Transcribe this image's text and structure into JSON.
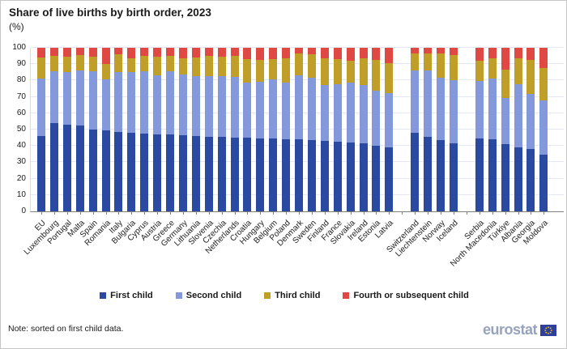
{
  "header": {
    "title": "Share of live births by birth order, 2023",
    "subtitle": "(%)"
  },
  "note": "Note: sorted on first child data.",
  "logo": {
    "text": "eurostat"
  },
  "colors": {
    "first_child": "#2a4aa2",
    "second_child": "#8399db",
    "third_child": "#bf9f28",
    "fourth_child": "#df4843",
    "gridline": "#e4e8f4",
    "axis": "#7f7f7f",
    "logo_text": "#97a3bd",
    "flag_blue": "#2e3f9e",
    "flag_stars": "#ffcc00"
  },
  "chart_data": {
    "type": "bar",
    "stacked": true,
    "title": "Share of live births by birth order, 2023",
    "ylabel": "(%)",
    "xlabel": "",
    "ylim": [
      0,
      100
    ],
    "yticks": [
      0,
      10,
      20,
      30,
      40,
      50,
      60,
      70,
      80,
      90,
      100
    ],
    "grid": true,
    "legend_position": "bottom",
    "group_gaps_after": [
      27,
      31
    ],
    "categories": [
      "EU",
      "Luxembourg",
      "Portugal",
      "Malta",
      "Spain",
      "Romania",
      "Italy",
      "Bulgaria",
      "Cyprus",
      "Austria",
      "Greece",
      "Germany",
      "Lithuania",
      "Slovenia",
      "Czechia",
      "Netherlands",
      "Croatia",
      "Hungary",
      "Belgium",
      "Poland",
      "Denmark",
      "Sweden",
      "Finland",
      "France",
      "Slovakia",
      "Ireland",
      "Estonia",
      "Latvia",
      "Switzerland",
      "Liechtenstein",
      "Norway",
      "Iceland",
      "Serbia",
      "North Macedonia",
      "Türkiye",
      "Albania",
      "Georgia",
      "Moldova"
    ],
    "series": [
      {
        "name": "First child",
        "key": "first-child",
        "color": "#2a4aa2",
        "values": [
          46,
          54,
          53,
          52.5,
          50,
          49.5,
          48.5,
          48,
          47.5,
          47,
          47,
          46.5,
          46,
          45.5,
          45.5,
          45,
          45,
          44.5,
          44.5,
          44,
          44,
          43.5,
          43,
          42.5,
          42,
          41.5,
          40,
          39,
          48,
          45.5,
          43.5,
          41.5,
          44.5,
          44,
          41,
          39,
          38,
          34.5
        ]
      },
      {
        "name": "Second child",
        "key": "second-child",
        "color": "#8399db",
        "values": [
          35,
          31.5,
          32,
          33.5,
          35.5,
          31,
          36.5,
          37,
          38,
          36,
          38.5,
          37,
          36.5,
          37,
          37,
          37,
          33.5,
          34.5,
          36,
          34.5,
          39,
          38,
          34,
          35,
          36.5,
          35.5,
          34,
          33.5,
          38,
          40.5,
          38,
          38.5,
          35,
          37,
          28.5,
          38.5,
          34,
          33.5
        ]
      },
      {
        "name": "Third child",
        "key": "third-child",
        "color": "#bf9f28",
        "values": [
          13,
          9.5,
          9.5,
          9.5,
          9,
          9.5,
          11,
          8.5,
          9.5,
          11.5,
          9.5,
          10,
          11.5,
          12.5,
          12,
          13,
          14.5,
          13.5,
          12.5,
          15,
          13.5,
          14.5,
          16.5,
          15.5,
          13.5,
          16.5,
          18.5,
          18,
          10.5,
          10.5,
          15,
          15.5,
          12.5,
          12.5,
          17,
          16,
          20.5,
          19.5
        ]
      },
      {
        "name": "Fourth or subsequent child",
        "key": "fourth-or-subsequent-child",
        "color": "#df4843",
        "values": [
          6,
          5,
          5.5,
          4.5,
          5.5,
          10,
          4,
          6.5,
          5,
          5.5,
          5,
          6.5,
          6,
          5,
          5.5,
          5,
          7,
          7.5,
          7,
          6.5,
          3.5,
          4,
          6.5,
          7,
          8,
          6.5,
          7.5,
          9.5,
          3.5,
          3.5,
          3.5,
          4.5,
          8,
          6.5,
          13.5,
          6.5,
          7.5,
          12.5
        ]
      }
    ]
  }
}
